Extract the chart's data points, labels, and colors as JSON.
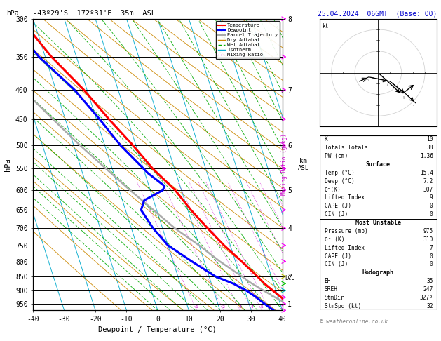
{
  "title_left": "-43º29'S  172º31'E  35m  ASL",
  "title_right": "25.04.2024  06GMT  (Base: 00)",
  "xlabel": "Dewpoint / Temperature (°C)",
  "ylabel_left": "hPa",
  "pmin": 300,
  "pmax": 975,
  "tmin": -40,
  "tmax": 40,
  "pressure_levels": [
    300,
    350,
    400,
    450,
    500,
    550,
    600,
    650,
    700,
    750,
    800,
    850,
    900,
    950
  ],
  "temp_profile_p": [
    975,
    950,
    925,
    900,
    875,
    850,
    800,
    750,
    700,
    650,
    600,
    550,
    500,
    450,
    400,
    350,
    300
  ],
  "temp_profile_t": [
    15.4,
    13.0,
    11.0,
    9.0,
    7.0,
    5.5,
    2.0,
    -2.0,
    -5.5,
    -9.0,
    -12.0,
    -17.0,
    -21.0,
    -26.0,
    -31.0,
    -38.0,
    -44.0
  ],
  "dewp_profile_p": [
    975,
    950,
    925,
    900,
    875,
    850,
    800,
    750,
    700,
    650,
    625,
    600,
    590,
    560,
    500,
    450,
    400,
    350,
    300
  ],
  "dewp_profile_t": [
    7.2,
    5.0,
    3.0,
    0.5,
    -3.0,
    -8.0,
    -14.0,
    -20.0,
    -23.0,
    -25.0,
    -23.0,
    -16.0,
    -15.0,
    -19.0,
    -25.0,
    -29.0,
    -34.0,
    -42.0,
    -48.0
  ],
  "parcel_p": [
    975,
    925,
    875,
    850,
    800,
    750,
    700,
    650,
    600,
    550,
    500,
    450,
    400,
    350,
    300
  ],
  "parcel_t": [
    15.4,
    9.0,
    3.0,
    0.5,
    -5.0,
    -10.0,
    -16.0,
    -21.0,
    -26.5,
    -32.0,
    -38.0,
    -44.0,
    -50.5,
    -57.0,
    -63.0
  ],
  "mixing_ratios": [
    1,
    2,
    3,
    4,
    5,
    6,
    10,
    15,
    20,
    25
  ],
  "lcl_pressure": 857,
  "km_ticks": [
    {
      "p": 300,
      "label": "8"
    },
    {
      "p": 400,
      "label": "7"
    },
    {
      "p": 500,
      "label": "6"
    },
    {
      "p": 600,
      "label": "5"
    },
    {
      "p": 700,
      "label": "4"
    },
    {
      "p": 800,
      "label": ""
    },
    {
      "p": 850,
      "label": "2"
    },
    {
      "p": 900,
      "label": ""
    },
    {
      "p": 950,
      "label": "1"
    }
  ],
  "stats": {
    "K": "10",
    "Totals_Totals": "38",
    "PW_cm": "1.36",
    "Surface_Temp": "15.4",
    "Surface_Dewp": "7.2",
    "Surface_thetae": "307",
    "Lifted_Index": "9",
    "CAPE_J": "0",
    "CIN_J": "0",
    "MU_Pressure": "975",
    "MU_thetae": "310",
    "MU_LI": "7",
    "MU_CAPE": "0",
    "MU_CIN": "0",
    "EH": "35",
    "SREH": "247",
    "StmDir": "327º",
    "StmSpd": "32"
  },
  "colors": {
    "temperature": "#ff0000",
    "dewpoint": "#0000ff",
    "parcel": "#aaaaaa",
    "dry_adiabat": "#cc8800",
    "wet_adiabat": "#00aa00",
    "isotherm": "#00aacc",
    "mixing_ratio": "#cc00cc",
    "background": "#ffffff",
    "grid": "#000000"
  },
  "wind_colors_right": [
    "#ff00ff",
    "#ff00ff",
    "#ff00ff",
    "#00cccc",
    "#00cc00",
    "#cccc00",
    "#ff00ff",
    "#ff00ff",
    "#ff00ff",
    "#ff00ff",
    "#ff00ff",
    "#ff00ff",
    "#ff00ff",
    "#ff00ff",
    "#ff00ff",
    "#ff00ff",
    "#ff00ff"
  ],
  "hodo_points": [
    [
      -8,
      -4
    ],
    [
      -4,
      -2
    ],
    [
      5,
      -4
    ],
    [
      12,
      -10
    ],
    [
      16,
      -14
    ]
  ],
  "hodo_labels": [
    "",
    "85",
    "7",
    "5",
    "3"
  ]
}
